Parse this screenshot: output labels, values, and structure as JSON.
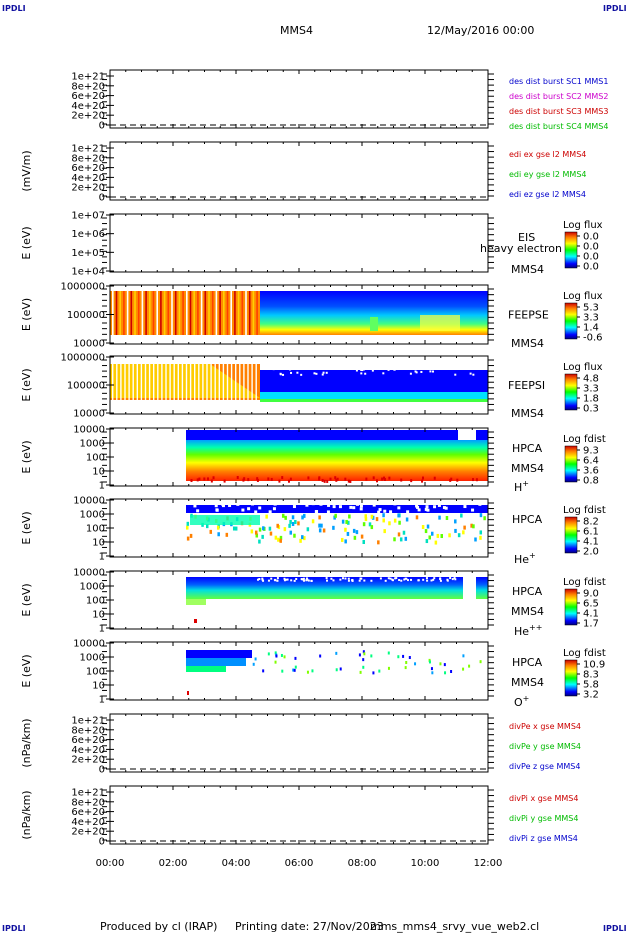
{
  "header": {
    "corner_label": "IPDLI",
    "spacecraft": "MMS4",
    "datetime": "12/May/2016 00:00"
  },
  "footer": {
    "producer": "Produced by cl (IRAP)",
    "printing": "Printing date: 27/Nov/2023",
    "filename": "mms_mms4_srvy_vue_web2.cl"
  },
  "chart_data": [
    {
      "type": "line",
      "id": "panel1",
      "ylabel": "",
      "ylim": [
        0,
        1.2e+21
      ],
      "yticks": [
        "1e+21",
        "8e+20",
        "6e+20",
        "4e+20",
        "2e+20",
        "0"
      ],
      "legend": [
        {
          "text": "des dist burst SC1 MMS1",
          "color": "#0000cc"
        },
        {
          "text": "des dist burst SC2 MMS2",
          "color": "#cc00cc"
        },
        {
          "text": "des dist burst SC3 MMS3",
          "color": "#cc0000"
        },
        {
          "text": "des dist burst SC4 MMS4",
          "color": "#00bb00"
        }
      ]
    },
    {
      "type": "line",
      "id": "panel2",
      "ylabel": "(mV/m)",
      "ylim": [
        0,
        1.2e+21
      ],
      "yticks": [
        "1e+21",
        "8e+20",
        "6e+20",
        "4e+20",
        "2e+20",
        "0"
      ],
      "legend": [
        {
          "text": "edi ex gse l2 MMS4",
          "color": "#cc0000"
        },
        {
          "text": "edi ey gse l2 MMS4",
          "color": "#00bb00"
        },
        {
          "text": "edi ez gse l2 MMS4",
          "color": "#0000cc"
        }
      ]
    },
    {
      "type": "heatmap",
      "id": "panel3",
      "ylabel": "E (eV)",
      "yticks": [
        "1e+07",
        "1e+06",
        "1e+05",
        "1e+04"
      ],
      "instrument": "EIS",
      "sc": "MMS4",
      "overlay": "heavy electron to",
      "colorbar": {
        "title": "Log flux",
        "ticks": [
          "0.0",
          "0.0",
          "0.0",
          "0.0"
        ]
      }
    },
    {
      "type": "heatmap",
      "id": "panel4",
      "ylabel": "E (eV)",
      "yticks": [
        "1000000",
        "100000",
        "10000"
      ],
      "instrument": "FEEPSE",
      "sc": "MMS4",
      "colorbar": {
        "title": "Log flux",
        "ticks": [
          "5.3",
          "3.3",
          "1.4",
          "-0.6"
        ]
      }
    },
    {
      "type": "heatmap",
      "id": "panel5",
      "ylabel": "E (eV)",
      "yticks": [
        "1000000",
        "100000",
        "10000"
      ],
      "instrument": "FEEPSI",
      "sc": "MMS4",
      "colorbar": {
        "title": "Log flux",
        "ticks": [
          "4.8",
          "3.3",
          "1.8",
          "0.3"
        ]
      }
    },
    {
      "type": "heatmap",
      "id": "panel6",
      "ylabel": "E (eV)",
      "yticks": [
        "10000",
        "1000",
        "100",
        "10",
        "1"
      ],
      "instrument": "HPCA",
      "sc": "MMS4",
      "species": "H",
      "charge": "+",
      "colorbar": {
        "title": "Log fdist",
        "ticks": [
          "9.3",
          "6.4",
          "3.6",
          "0.8"
        ]
      }
    },
    {
      "type": "heatmap",
      "id": "panel7",
      "ylabel": "E (eV)",
      "yticks": [
        "10000",
        "1000",
        "100",
        "10",
        "1"
      ],
      "instrument": "HPCA",
      "sc": "",
      "species": "He",
      "charge": "+",
      "colorbar": {
        "title": "Log fdist",
        "ticks": [
          "8.2",
          "6.1",
          "4.1",
          "2.0"
        ]
      }
    },
    {
      "type": "heatmap",
      "id": "panel8",
      "ylabel": "E (eV)",
      "yticks": [
        "10000",
        "1000",
        "100",
        "10",
        "1"
      ],
      "instrument": "HPCA",
      "sc": "MMS4",
      "species": "He",
      "charge": "++",
      "colorbar": {
        "title": "Log fdist",
        "ticks": [
          "9.0",
          "6.5",
          "4.1",
          "1.7"
        ]
      }
    },
    {
      "type": "heatmap",
      "id": "panel9",
      "ylabel": "E (eV)",
      "yticks": [
        "10000",
        "1000",
        "100",
        "10",
        "1"
      ],
      "instrument": "HPCA",
      "sc": "MMS4",
      "species": "O",
      "charge": "+",
      "colorbar": {
        "title": "Log fdist",
        "ticks": [
          "10.9",
          "8.3",
          "5.8",
          "3.2"
        ]
      }
    },
    {
      "type": "line",
      "id": "panel10",
      "ylabel": "(nPa/km)",
      "ylim": [
        0,
        1.2e+21
      ],
      "yticks": [
        "1e+21",
        "8e+20",
        "6e+20",
        "4e+20",
        "2e+20",
        "0"
      ],
      "legend": [
        {
          "text": "divPe x gse MMS4",
          "color": "#cc0000"
        },
        {
          "text": "divPe y gse MMS4",
          "color": "#00bb00"
        },
        {
          "text": "divPe z gse MMS4",
          "color": "#0000cc"
        }
      ]
    },
    {
      "type": "line",
      "id": "panel11",
      "ylabel": "(nPa/km)",
      "ylim": [
        0,
        1.2e+21
      ],
      "yticks": [
        "1e+21",
        "8e+20",
        "6e+20",
        "4e+20",
        "2e+20",
        "0"
      ],
      "legend": [
        {
          "text": "divPi x gse MMS4",
          "color": "#cc0000"
        },
        {
          "text": "divPi y gse MMS4",
          "color": "#00bb00"
        },
        {
          "text": "divPi z gse MMS4",
          "color": "#0000cc"
        }
      ]
    }
  ],
  "time_axis": {
    "ticks": [
      "00:00",
      "02:00",
      "04:00",
      "06:00",
      "08:00",
      "10:00",
      "12:00"
    ],
    "range_hours": [
      0,
      12
    ]
  }
}
